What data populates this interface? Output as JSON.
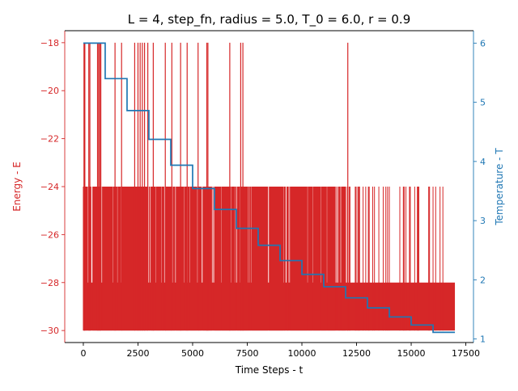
{
  "chart_data": {
    "type": "line",
    "title": "L = 4, step_fn, radius = 5.0, T_0 = 6.0, r = 0.9",
    "xlabel": "Time Steps - t",
    "ylabel_left": "Energy - E",
    "ylabel_right": "Temperature - T",
    "xlim": [
      -850,
      17850
    ],
    "ylim_left": [
      -30.5,
      -17.5
    ],
    "ylim_right": [
      0.94,
      6.21
    ],
    "xticks": [
      0,
      2500,
      5000,
      7500,
      10000,
      12500,
      15000,
      17500
    ],
    "xtick_labels": [
      "0",
      "2500",
      "5000",
      "7500",
      "10000",
      "12500",
      "15000",
      "17500"
    ],
    "yticks_left": [
      -30,
      -28,
      -26,
      -24,
      -22,
      -20,
      -18
    ],
    "ytick_labels_left": [
      "−30",
      "−28",
      "−26",
      "−24",
      "−22",
      "−20",
      "−18"
    ],
    "yticks_right": [
      1,
      2,
      3,
      4,
      5,
      6
    ],
    "ytick_labels_right": [
      "1",
      "2",
      "3",
      "4",
      "5",
      "6"
    ],
    "colors": {
      "energy": "#d62728",
      "temperature": "#1f77b4",
      "axes": "#000000"
    },
    "grid": false,
    "series": [
      {
        "axis": "left",
        "x_range": [
          0,
          17000
        ],
        "band_min": -30,
        "band_dense_max": -28,
        "band_mid_max": -24,
        "spikes_to_minus18": [
          30,
          50,
          70,
          250,
          300,
          650,
          700,
          750,
          800,
          1450,
          1750,
          2350,
          2500,
          2600,
          2700,
          2800,
          2950,
          3200,
          3750,
          4050,
          4450,
          4750,
          5250,
          5650,
          5700,
          6700,
          7200,
          7300,
          12100
        ],
        "activity_end_dense": 12000,
        "activity_end_sparse": 16500,
        "sparse_spikes_to_minus24": [
          15350,
          16450
        ]
      },
      {
        "axis": "right",
        "steps": [
          {
            "x_start": 0,
            "x_end": 1000,
            "value": 6.0
          },
          {
            "x_start": 1000,
            "x_end": 2000,
            "value": 5.4
          },
          {
            "x_start": 2000,
            "x_end": 3000,
            "value": 4.86
          },
          {
            "x_start": 3000,
            "x_end": 4000,
            "value": 4.374
          },
          {
            "x_start": 4000,
            "x_end": 5000,
            "value": 3.937
          },
          {
            "x_start": 5000,
            "x_end": 6000,
            "value": 3.543
          },
          {
            "x_start": 6000,
            "x_end": 7000,
            "value": 3.189
          },
          {
            "x_start": 7000,
            "x_end": 8000,
            "value": 2.87
          },
          {
            "x_start": 8000,
            "x_end": 9000,
            "value": 2.583
          },
          {
            "x_start": 9000,
            "x_end": 10000,
            "value": 2.325
          },
          {
            "x_start": 10000,
            "x_end": 11000,
            "value": 2.092
          },
          {
            "x_start": 11000,
            "x_end": 12000,
            "value": 1.883
          },
          {
            "x_start": 12000,
            "x_end": 13000,
            "value": 1.695
          },
          {
            "x_start": 13000,
            "x_end": 14000,
            "value": 1.525
          },
          {
            "x_start": 14000,
            "x_end": 15000,
            "value": 1.373
          },
          {
            "x_start": 15000,
            "x_end": 16000,
            "value": 1.236
          },
          {
            "x_start": 16000,
            "x_end": 17000,
            "value": 1.112
          }
        ]
      }
    ]
  }
}
